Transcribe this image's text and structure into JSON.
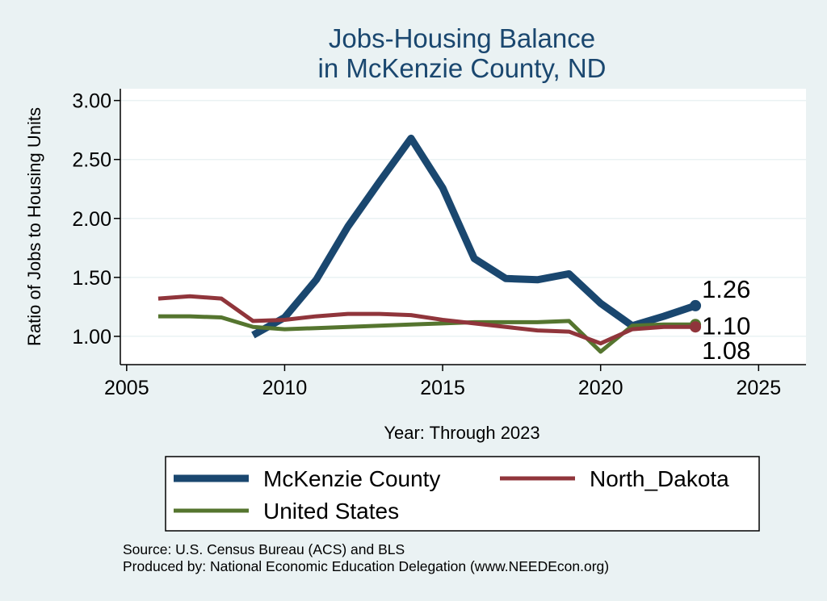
{
  "chart_data": {
    "type": "line",
    "title": [
      "Jobs-Housing Balance",
      "in McKenzie County, ND"
    ],
    "xlabel": "Year: Through 2023",
    "ylabel": "Ratio of Jobs to Housing Units",
    "xlim": [
      2004.8,
      2026.5
    ],
    "ylim": [
      0.76,
      3.1
    ],
    "xticks": [
      2005,
      2010,
      2015,
      2020,
      2025
    ],
    "xtick_labels": [
      "2005",
      "2010",
      "2015",
      "2020",
      "2025"
    ],
    "yticks": [
      1.0,
      1.5,
      2.0,
      2.5,
      3.0
    ],
    "ytick_labels": [
      "1.00",
      "1.50",
      "2.00",
      "2.50",
      "3.00"
    ],
    "grid": true,
    "legend_position": "bottom",
    "series": [
      {
        "name": "McKenzie County",
        "color": "#1a476f",
        "x": [
          2009,
          2010,
          2011,
          2012,
          2013,
          2014,
          2015,
          2016,
          2017,
          2018,
          2019,
          2020,
          2021,
          2022,
          2023
        ],
        "values": [
          1.01,
          1.16,
          1.48,
          1.93,
          2.31,
          2.68,
          2.26,
          1.66,
          1.49,
          1.48,
          1.53,
          1.28,
          1.09,
          1.17,
          1.26
        ],
        "end_label": "1.26"
      },
      {
        "name": "North_Dakota",
        "color": "#90353b",
        "x": [
          2006,
          2007,
          2008,
          2009,
          2010,
          2011,
          2012,
          2013,
          2014,
          2015,
          2016,
          2017,
          2018,
          2019,
          2020,
          2021,
          2022,
          2023
        ],
        "values": [
          1.32,
          1.34,
          1.32,
          1.13,
          1.14,
          1.17,
          1.19,
          1.19,
          1.18,
          1.14,
          1.11,
          1.08,
          1.05,
          1.04,
          0.94,
          1.06,
          1.08,
          1.08
        ],
        "end_label": "1.08"
      },
      {
        "name": "United States",
        "color": "#55752f",
        "x": [
          2006,
          2007,
          2008,
          2009,
          2010,
          2011,
          2012,
          2013,
          2014,
          2015,
          2016,
          2017,
          2018,
          2019,
          2020,
          2021,
          2022,
          2023
        ],
        "values": [
          1.17,
          1.17,
          1.16,
          1.08,
          1.06,
          1.07,
          1.08,
          1.09,
          1.1,
          1.11,
          1.12,
          1.12,
          1.12,
          1.13,
          0.87,
          1.09,
          1.1,
          1.1
        ],
        "end_label": "1.10"
      }
    ],
    "notes": [
      "Source: U.S. Census Bureau (ACS) and BLS",
      "Produced by: National Economic Education Delegation (www.NEEDEcon.org)"
    ]
  }
}
